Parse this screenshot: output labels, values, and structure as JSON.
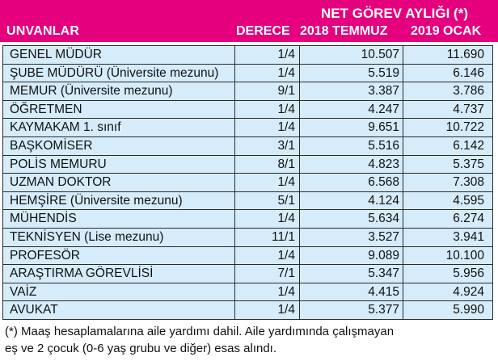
{
  "header": {
    "unvanlar": "UNVANLAR",
    "derece": "DERECE",
    "net_gorev": "NET GÖREV AYLIĞI (*)",
    "col_2018": "2018 TEMMUZ",
    "col_2019": "2019 OCAK",
    "bg_color": "#e5007d"
  },
  "rows": [
    {
      "title": "GENEL MÜDÜR",
      "derece": "1/4",
      "v2018": "10.507",
      "v2019": "11.690"
    },
    {
      "title": "ŞUBE MÜDÜRÜ (Üniversite mezunu)",
      "derece": "1/4",
      "v2018": "5.519",
      "v2019": "6.146"
    },
    {
      "title": "MEMUR (Üniversite mezunu)",
      "derece": "9/1",
      "v2018": "3.387",
      "v2019": "3.786"
    },
    {
      "title": "ÖĞRETMEN",
      "derece": "1/4",
      "v2018": "4.247",
      "v2019": "4.737"
    },
    {
      "title": "KAYMAKAM 1. sınıf",
      "derece": "1/4",
      "v2018": "9.651",
      "v2019": "10.722"
    },
    {
      "title": "BAŞKOMİSER",
      "derece": "3/1",
      "v2018": "5.516",
      "v2019": "6.142"
    },
    {
      "title": "POLİS MEMURU",
      "derece": "8/1",
      "v2018": "4.823",
      "v2019": "5.375"
    },
    {
      "title": "UZMAN DOKTOR",
      "derece": "1/4",
      "v2018": "6.568",
      "v2019": "7.308"
    },
    {
      "title": "HEMŞİRE (Üniversite mezunu)",
      "derece": "5/1",
      "v2018": "4.124",
      "v2019": "4.595"
    },
    {
      "title": "MÜHENDİS",
      "derece": "1/4",
      "v2018": "5.634",
      "v2019": "6.274"
    },
    {
      "title": "TEKNİSYEN (Lise mezunu)",
      "derece": "11/1",
      "v2018": "3.527",
      "v2019": "3.941"
    },
    {
      "title": "PROFESÖR",
      "derece": "1/4",
      "v2018": "9.089",
      "v2019": "10.100"
    },
    {
      "title": "ARAŞTIRMA GÖREVLİSİ",
      "derece": "7/1",
      "v2018": "5.347",
      "v2019": "5.956"
    },
    {
      "title": "VAİZ",
      "derece": "1/4",
      "v2018": "4.415",
      "v2019": "4.924"
    },
    {
      "title": "AVUKAT",
      "derece": "1/4",
      "v2018": "5.377",
      "v2019": "5.990"
    }
  ],
  "footnote": {
    "line1": "(*) Maaş hesaplamalarına aile yardımı dahil. Aile yardımında çalışmayan",
    "line2": "eş ve 2 çocuk (0-6 yaş grubu ve diğer) esas alındı."
  },
  "table_bg": "#d6ecfa"
}
